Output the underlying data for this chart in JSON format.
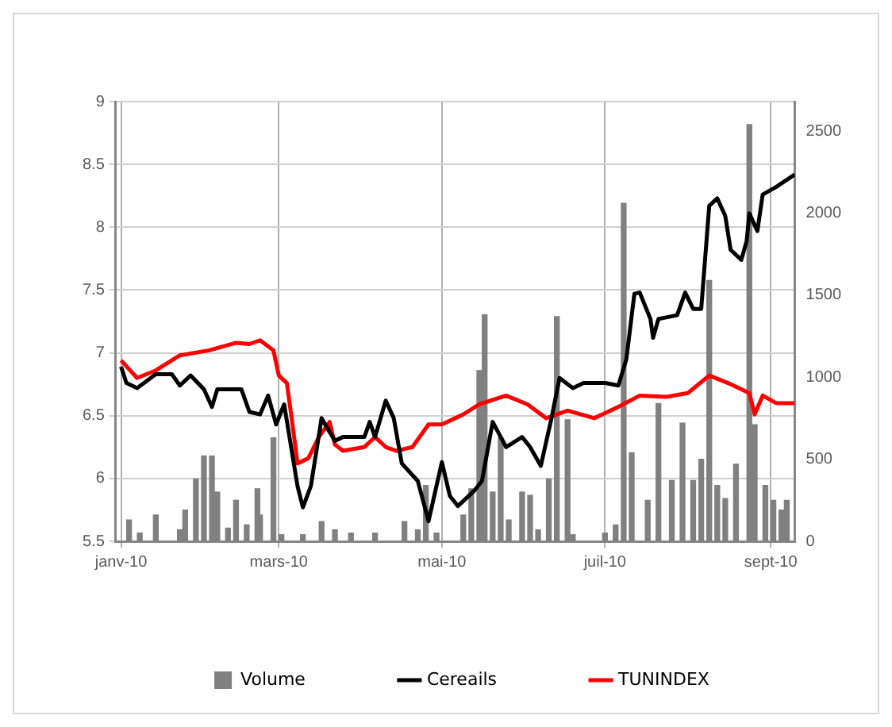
{
  "chart_data": {
    "type": "line",
    "legend": "bottom",
    "grid": true,
    "marker": "none",
    "line_style": "solid",
    "xlim": [
      "2009-12-30",
      "2010-09-10"
    ],
    "xticks": [
      {
        "value": "2010-01-01",
        "label": "janv-10"
      },
      {
        "value": "2010-03-01",
        "label": "mars-10"
      },
      {
        "value": "2010-05-01",
        "label": "mai-10"
      },
      {
        "value": "2010-07-01",
        "label": "juil-10"
      },
      {
        "value": "2010-09-01",
        "label": "sept-10"
      }
    ],
    "ylim": [
      5.5,
      9
    ],
    "yticks": [
      5.5,
      6,
      6.5,
      7,
      7.5,
      8,
      8.5,
      9
    ],
    "y2lim": [
      0,
      2680
    ],
    "y2ticks": [
      0,
      500,
      1000,
      1500,
      2000,
      2500
    ],
    "series": [
      {
        "name": "Volume",
        "type": "bar",
        "axis": "y2",
        "color": "#808080",
        "x": [
          "2010-01-04",
          "2010-01-08",
          "2010-01-14",
          "2010-01-23",
          "2010-01-25",
          "2010-01-29",
          "2010-02-01",
          "2010-02-04",
          "2010-02-06",
          "2010-02-10",
          "2010-02-13",
          "2010-02-17",
          "2010-02-21",
          "2010-02-22",
          "2010-02-27",
          "2010-03-02",
          "2010-03-10",
          "2010-03-17",
          "2010-03-22",
          "2010-03-28",
          "2010-04-06",
          "2010-04-17",
          "2010-04-22",
          "2010-04-25",
          "2010-04-29",
          "2010-05-09",
          "2010-05-12",
          "2010-05-15",
          "2010-05-17",
          "2010-05-20",
          "2010-05-23",
          "2010-05-26",
          "2010-05-31",
          "2010-06-03",
          "2010-06-06",
          "2010-06-10",
          "2010-06-13",
          "2010-06-17",
          "2010-06-19",
          "2010-07-01",
          "2010-07-05",
          "2010-07-08",
          "2010-07-11",
          "2010-07-17",
          "2010-07-21",
          "2010-07-26",
          "2010-07-30",
          "2010-08-03",
          "2010-08-06",
          "2010-08-09",
          "2010-08-12",
          "2010-08-15",
          "2010-08-19",
          "2010-08-24",
          "2010-08-26",
          "2010-08-30",
          "2010-09-02",
          "2010-09-05",
          "2010-09-07"
        ],
        "values": [
          130,
          50,
          160,
          70,
          190,
          380,
          520,
          520,
          300,
          80,
          250,
          100,
          320,
          160,
          630,
          40,
          40,
          120,
          70,
          50,
          50,
          120,
          70,
          340,
          50,
          160,
          320,
          1040,
          1380,
          300,
          630,
          130,
          300,
          280,
          70,
          380,
          1370,
          740,
          40,
          50,
          100,
          2060,
          540,
          250,
          840,
          370,
          720,
          370,
          500,
          1590,
          340,
          260,
          470,
          2540,
          710,
          340,
          250,
          190,
          250
        ]
      },
      {
        "name": "Cereails",
        "color": "#000000",
        "x": [
          "2010-01-01",
          "2010-01-03",
          "2010-01-07",
          "2010-01-14",
          "2010-01-20",
          "2010-01-23",
          "2010-01-27",
          "2010-02-01",
          "2010-02-04",
          "2010-02-06",
          "2010-02-15",
          "2010-02-18",
          "2010-02-22",
          "2010-02-25",
          "2010-02-28",
          "2010-03-03",
          "2010-03-08",
          "2010-03-10",
          "2010-03-13",
          "2010-03-17",
          "2010-03-20",
          "2010-03-22",
          "2010-03-25",
          "2010-04-02",
          "2010-04-04",
          "2010-04-06",
          "2010-04-10",
          "2010-04-13",
          "2010-04-16",
          "2010-04-22",
          "2010-04-26",
          "2010-05-01",
          "2010-05-04",
          "2010-05-07",
          "2010-05-13",
          "2010-05-16",
          "2010-05-20",
          "2010-05-23",
          "2010-05-25",
          "2010-05-31",
          "2010-06-03",
          "2010-06-07",
          "2010-06-11",
          "2010-06-14",
          "2010-06-19",
          "2010-06-23",
          "2010-07-01",
          "2010-07-06",
          "2010-07-09",
          "2010-07-12",
          "2010-07-14",
          "2010-07-18",
          "2010-07-19",
          "2010-07-21",
          "2010-07-28",
          "2010-07-31",
          "2010-08-03",
          "2010-08-06",
          "2010-08-09",
          "2010-08-12",
          "2010-08-15",
          "2010-08-17",
          "2010-08-21",
          "2010-08-23",
          "2010-08-24",
          "2010-08-27",
          "2010-08-29",
          "2010-09-03",
          "2010-09-10"
        ],
        "values": [
          6.89,
          6.76,
          6.72,
          6.83,
          6.83,
          6.74,
          6.82,
          6.71,
          6.57,
          6.71,
          6.71,
          6.53,
          6.51,
          6.66,
          6.43,
          6.59,
          5.94,
          5.77,
          5.94,
          6.48,
          6.37,
          6.3,
          6.33,
          6.33,
          6.45,
          6.33,
          6.62,
          6.48,
          6.12,
          5.98,
          5.66,
          6.13,
          5.86,
          5.78,
          5.9,
          5.98,
          6.45,
          6.33,
          6.25,
          6.33,
          6.25,
          6.1,
          6.48,
          6.8,
          6.72,
          6.76,
          6.76,
          6.74,
          6.95,
          7.47,
          7.48,
          7.27,
          7.12,
          7.27,
          7.3,
          7.48,
          7.35,
          7.35,
          8.17,
          8.23,
          8.09,
          7.82,
          7.74,
          7.89,
          8.11,
          7.97,
          8.26,
          8.32,
          8.42
        ]
      },
      {
        "name": "TUNINDEX",
        "color": "#ff0000",
        "x": [
          "2010-01-01",
          "2010-01-07",
          "2010-01-14",
          "2010-01-23",
          "2010-02-03",
          "2010-02-13",
          "2010-02-18",
          "2010-02-22",
          "2010-02-27",
          "2010-03-01",
          "2010-03-04",
          "2010-03-06",
          "2010-03-08",
          "2010-03-12",
          "2010-03-16",
          "2010-03-20",
          "2010-03-22",
          "2010-03-25",
          "2010-04-02",
          "2010-04-06",
          "2010-04-10",
          "2010-04-14",
          "2010-04-20",
          "2010-04-26",
          "2010-05-01",
          "2010-05-09",
          "2010-05-15",
          "2010-05-25",
          "2010-06-02",
          "2010-06-09",
          "2010-06-17",
          "2010-06-27",
          "2010-07-06",
          "2010-07-14",
          "2010-07-24",
          "2010-08-01",
          "2010-08-09",
          "2010-08-16",
          "2010-08-24",
          "2010-08-26",
          "2010-08-29",
          "2010-09-03",
          "2010-09-10"
        ],
        "values": [
          6.94,
          6.8,
          6.86,
          6.98,
          7.02,
          7.08,
          7.07,
          7.1,
          7.02,
          6.82,
          6.76,
          6.45,
          6.12,
          6.16,
          6.33,
          6.45,
          6.27,
          6.22,
          6.25,
          6.33,
          6.25,
          6.22,
          6.25,
          6.43,
          6.43,
          6.51,
          6.59,
          6.66,
          6.59,
          6.48,
          6.54,
          6.48,
          6.57,
          6.66,
          6.65,
          6.68,
          6.82,
          6.76,
          6.68,
          6.51,
          6.66,
          6.6,
          6.6
        ]
      }
    ]
  }
}
